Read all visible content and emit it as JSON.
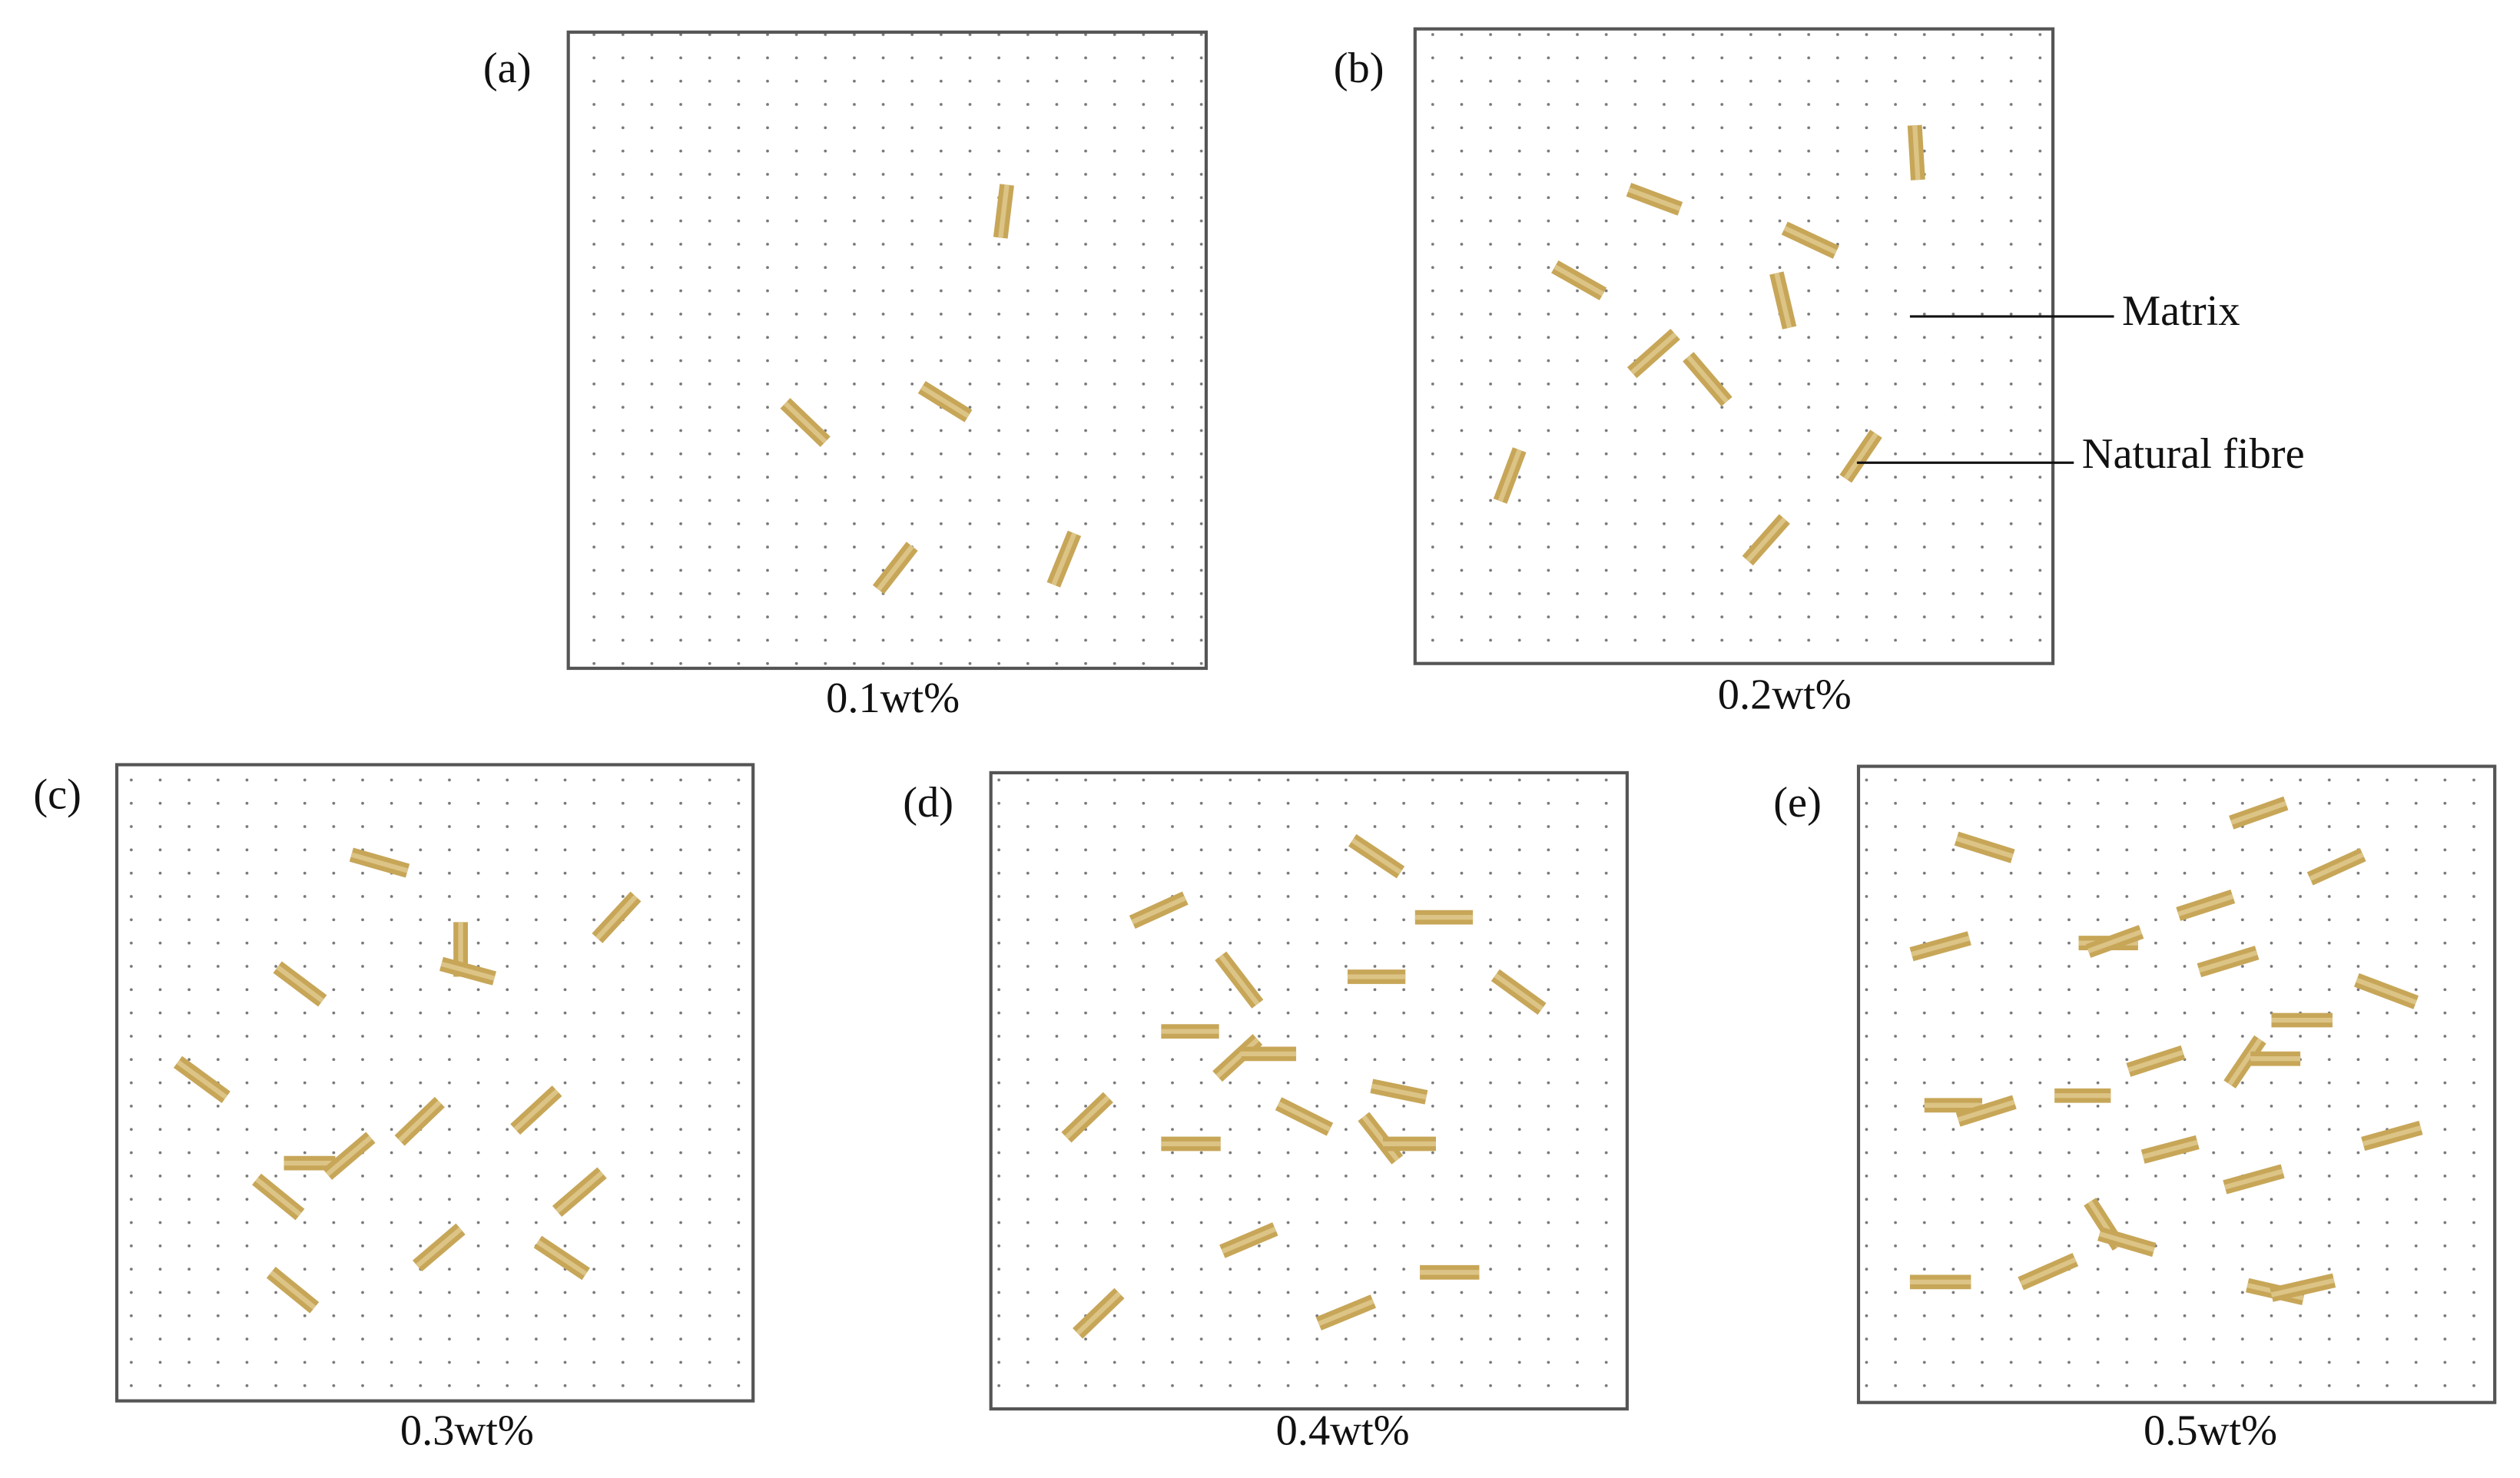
{
  "panels": [
    {
      "label": "(a)",
      "caption": "0.1wt%"
    },
    {
      "label": "(b)",
      "caption": "0.2wt%"
    },
    {
      "label": "(c)",
      "caption": "0.3wt%"
    },
    {
      "label": "(d)",
      "caption": "0.4wt%"
    },
    {
      "label": "(e)",
      "caption": "0.5wt%"
    }
  ],
  "annotations": {
    "matrix": "Matrix",
    "natural_fibre": "Natural fibre"
  }
}
